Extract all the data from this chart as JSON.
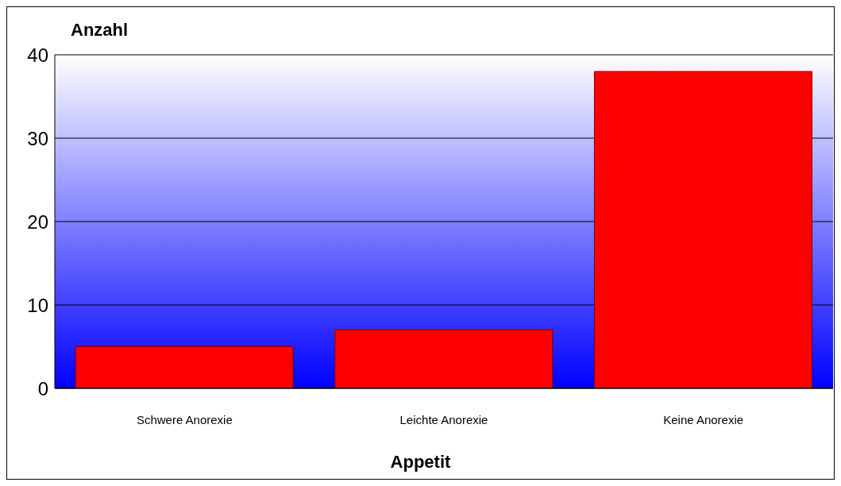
{
  "chart_data": {
    "type": "bar",
    "ylabel": "Anzahl",
    "xlabel": "Appetit",
    "categories": [
      "Schwere Anorexie",
      "Leichte Anorexie",
      "Keine Anorexie"
    ],
    "values": [
      5,
      7,
      38
    ],
    "color": "#ff0000",
    "ylim": [
      0,
      40
    ],
    "yticks": [
      0,
      10,
      20,
      30,
      40
    ],
    "grid": "y"
  }
}
